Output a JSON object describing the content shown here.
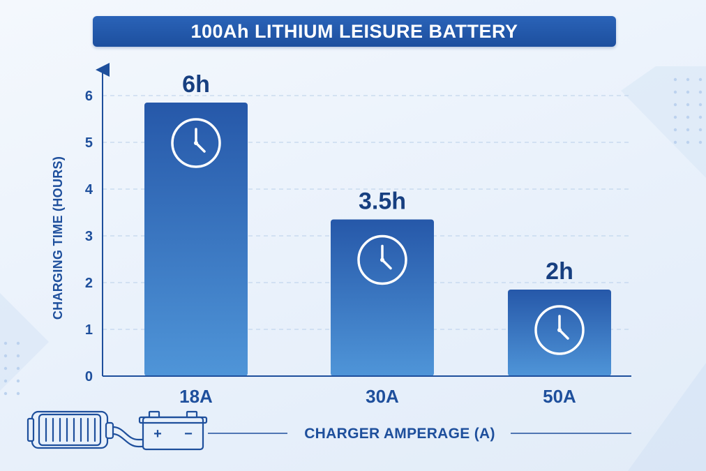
{
  "chart_data": {
    "type": "bar",
    "title": "100Ah LITHIUM LEISURE BATTERY",
    "categories": [
      "18A",
      "30A",
      "50A"
    ],
    "values": [
      6,
      3.5,
      2
    ],
    "data_labels": [
      "6h",
      "3.5h",
      "2h"
    ],
    "xlabel": "CHARGER AMPERAGE (A)",
    "ylabel": "CHARGING TIME (HOURS)",
    "ylim": [
      0,
      6.4
    ],
    "yticks": [
      0,
      1,
      2,
      3,
      4,
      5,
      6
    ],
    "grid": true,
    "bar_icon": "clock-icon",
    "colors": {
      "bar_top": "#2658a9",
      "bar_bottom": "#4f95d8",
      "axis": "#1e4f9c",
      "title_bar": "#1d4f9e"
    }
  },
  "illustration": {
    "charger_icon": "battery-charger-icon",
    "battery_icon": "battery-icon",
    "battery_plus": "+",
    "battery_minus": "−"
  }
}
